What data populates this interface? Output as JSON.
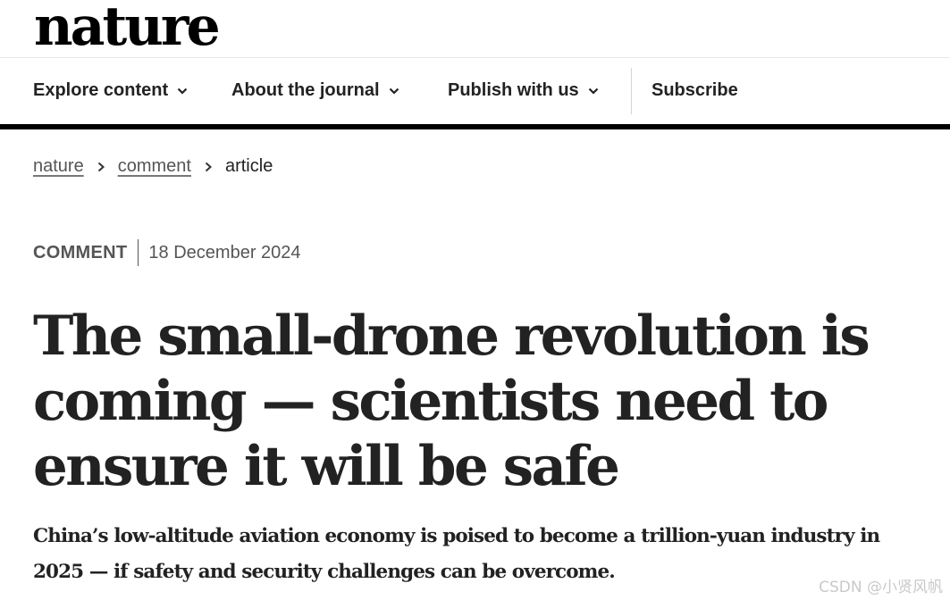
{
  "header": {
    "logo": "nature"
  },
  "nav": {
    "items": [
      {
        "label": "Explore content",
        "has_dropdown": true
      },
      {
        "label": "About the journal",
        "has_dropdown": true
      },
      {
        "label": "Publish with us",
        "has_dropdown": true
      }
    ],
    "subscribe_label": "Subscribe"
  },
  "breadcrumb": {
    "items": [
      "nature",
      "comment"
    ],
    "current": "article"
  },
  "article": {
    "type": "COMMENT",
    "date": "18 December 2024",
    "title": "The small-drone revolution is coming — scientists need to ensure it will be safe",
    "standfirst": "China’s low-altitude aviation economy is poised to become a trillion-yuan industry in 2025 — if safety and security challenges can be overcome."
  },
  "watermark": "CSDN @小贤风帆",
  "colors": {
    "text": "#222222",
    "muted": "#555555",
    "rule": "#000000"
  }
}
